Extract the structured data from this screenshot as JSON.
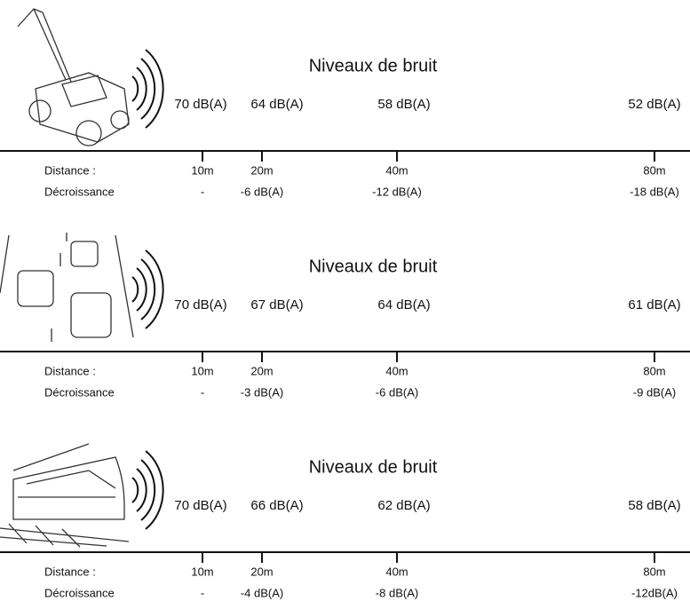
{
  "panels": [
    {
      "title": "Niveaux de bruit",
      "levels": [
        "70 dB(A)",
        "64 dB(A)",
        "58 dB(A)",
        "52 dB(A)"
      ],
      "distance_label": "Distance :",
      "decay_label": "Décroissance",
      "distances": [
        "10m",
        "20m",
        "40m",
        "80m"
      ],
      "decays": [
        "-",
        "-6 dB(A)",
        "-12 dB(A)",
        "-18 dB(A)"
      ]
    },
    {
      "title": "Niveaux de bruit",
      "levels": [
        "70 dB(A)",
        "67 dB(A)",
        "64 dB(A)",
        "61 dB(A)"
      ],
      "distance_label": "Distance :",
      "decay_label": "Décroissance",
      "distances": [
        "10m",
        "20m",
        "40m",
        "80m"
      ],
      "decays": [
        "-",
        "-3 dB(A)",
        "-6 dB(A)",
        "-9 dB(A)"
      ]
    },
    {
      "title": "Niveaux de bruit",
      "levels": [
        "70 dB(A)",
        "66 dB(A)",
        "62 dB(A)",
        "58 dB(A)"
      ],
      "distance_label": "Distance :",
      "decay_label": "Décroissance",
      "distances": [
        "10m",
        "20m",
        "40m",
        "80m"
      ],
      "decays": [
        "-",
        "-4 dB(A)",
        "-8 dB(A)",
        "-12dB(A)"
      ]
    }
  ]
}
